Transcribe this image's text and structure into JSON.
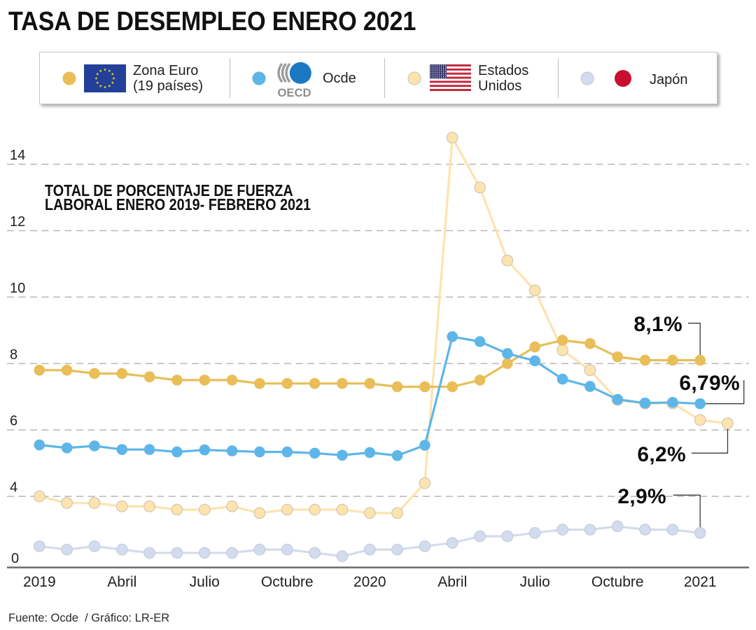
{
  "header": {
    "title": "TASA DE DESEMPLEO ENERO 2021"
  },
  "legend": {
    "items": [
      {
        "label_lines": [
          "Zona Euro",
          "(19 países)"
        ],
        "marker_color": "#e9be58",
        "icon": "eu-flag-icon"
      },
      {
        "label_lines": [
          "Ocde"
        ],
        "marker_color": "#5eb6e8",
        "icon": "oecd-logo-icon",
        "logo_text": "OECD",
        "logo_circle_color": "#1a79c2"
      },
      {
        "label_lines": [
          "Estados",
          "Unidos"
        ],
        "marker_color": "#fde3ae",
        "icon": "us-flag-icon"
      },
      {
        "label_lines": [
          "Japón"
        ],
        "marker_color": "#d2dcee",
        "icon": "japan-red-circle-icon",
        "icon_color": "#c8102e"
      }
    ]
  },
  "chart_data": {
    "type": "line",
    "title": "TOTAL DE PORCENTAJE DE FUERZA\nLABORAL ENERO 2019- FEBRERO 2021",
    "xlabel": "",
    "ylabel": "",
    "x": [
      "2019-01",
      "2019-02",
      "2019-03",
      "2019-04",
      "2019-05",
      "2019-06",
      "2019-07",
      "2019-08",
      "2019-09",
      "2019-10",
      "2019-11",
      "2019-12",
      "2020-01",
      "2020-02",
      "2020-03",
      "2020-04",
      "2020-05",
      "2020-06",
      "2020-07",
      "2020-08",
      "2020-09",
      "2020-10",
      "2020-11",
      "2020-12",
      "2021-01",
      "2021-02"
    ],
    "xtick_labels": [
      {
        "index": 0,
        "label": "2019"
      },
      {
        "index": 3,
        "label": "Abril"
      },
      {
        "index": 6,
        "label": "Julio"
      },
      {
        "index": 9,
        "label": "Octubre"
      },
      {
        "index": 12,
        "label": "2020"
      },
      {
        "index": 15,
        "label": "Abril"
      },
      {
        "index": 18,
        "label": "Julio"
      },
      {
        "index": 21,
        "label": "Octubre"
      },
      {
        "index": 24,
        "label": "2021"
      }
    ],
    "yticks": [
      {
        "value": 4,
        "label": "4"
      },
      {
        "value": 6,
        "label": "6"
      },
      {
        "value": 8,
        "label": "8"
      },
      {
        "value": 10,
        "label": "10"
      },
      {
        "value": 12,
        "label": "12"
      },
      {
        "value": 14,
        "label": "14"
      }
    ],
    "baseline_label": "0",
    "ylim": [
      1.86,
      15.15
    ],
    "grid": true,
    "legend_position": "top",
    "series": [
      {
        "name": "Zona Euro (19 países)",
        "color": "#e9be58",
        "values": [
          7.8,
          7.8,
          7.7,
          7.7,
          7.6,
          7.5,
          7.5,
          7.5,
          7.4,
          7.4,
          7.4,
          7.4,
          7.4,
          7.3,
          7.3,
          7.3,
          7.5,
          8.0,
          8.5,
          8.7,
          8.6,
          8.2,
          8.1,
          8.1,
          8.1
        ]
      },
      {
        "name": "Ocde",
        "color": "#5eb6e8",
        "values": [
          5.55,
          5.46,
          5.52,
          5.41,
          5.41,
          5.34,
          5.4,
          5.37,
          5.34,
          5.34,
          5.3,
          5.24,
          5.32,
          5.23,
          5.54,
          8.81,
          8.66,
          8.3,
          8.08,
          7.53,
          7.31,
          6.92,
          6.81,
          6.83,
          6.79
        ]
      },
      {
        "name": "Estados Unidos",
        "color": "#fde3ae",
        "marker_edge_color": "#cdc4b1",
        "values": [
          4.0,
          3.8,
          3.8,
          3.7,
          3.7,
          3.6,
          3.6,
          3.7,
          3.5,
          3.6,
          3.6,
          3.6,
          3.5,
          3.5,
          4.4,
          14.8,
          13.3,
          11.1,
          10.2,
          8.4,
          7.8,
          6.9,
          6.8,
          6.8,
          6.3,
          6.2
        ]
      },
      {
        "name": "Japón",
        "color": "#d2dcee",
        "marker_edge_color": "#c3cbd9",
        "values": [
          2.5,
          2.4,
          2.5,
          2.4,
          2.3,
          2.3,
          2.3,
          2.3,
          2.4,
          2.4,
          2.3,
          2.2,
          2.4,
          2.4,
          2.5,
          2.6,
          2.8,
          2.8,
          2.9,
          3.0,
          3.0,
          3.1,
          3.0,
          3.0,
          2.9
        ]
      }
    ],
    "annotations": [
      {
        "series": 0,
        "index": 24,
        "label": "8,1%"
      },
      {
        "series": 1,
        "index": 24,
        "label": "6,79%"
      },
      {
        "series": 2,
        "index": 25,
        "label": "6,2%"
      },
      {
        "series": 3,
        "index": 24,
        "label": "2,9%"
      }
    ]
  },
  "footer": {
    "source": "Fuente: Ocde  / Gráfico: LR-ER"
  }
}
